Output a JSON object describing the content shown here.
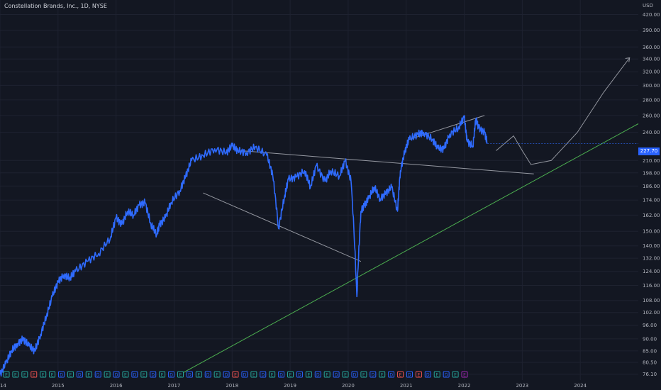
{
  "header": {
    "title": "Constellation Brands, Inc., 1D, NYSE"
  },
  "colors": {
    "background": "#131722",
    "grid": "#1e2230",
    "price_line": "#2f6bff",
    "axis_text": "#b2b5be",
    "trend_support": "#4caf50",
    "annotation": "#9598a1",
    "badge": "#2962ff"
  },
  "chart_data": {
    "type": "line",
    "title": "Constellation Brands, Inc., 1D, NYSE",
    "xlabel": "",
    "ylabel": "USD",
    "currency_label": "USD",
    "current_price": "227.70",
    "y_scale": "log",
    "ylim": [
      74,
      450
    ],
    "xlim": [
      2014.0,
      2025.0
    ],
    "grid": true,
    "x_tick_labels": [
      "2014",
      "2015",
      "2016",
      "2017",
      "2018",
      "2019",
      "2020",
      "2021",
      "2022",
      "2023",
      "2024"
    ],
    "y_tick_labels": [
      "420.00",
      "390.00",
      "360.00",
      "340.00",
      "320.00",
      "300.00",
      "280.00",
      "260.00",
      "240.00",
      "210.00",
      "198.00",
      "186.00",
      "174.00",
      "162.00",
      "150.00",
      "140.00",
      "132.00",
      "124.00",
      "116.00",
      "108.00",
      "102.00",
      "96.00",
      "90.00",
      "85.00",
      "80.50",
      "76.10"
    ],
    "series": [
      {
        "x": [
          2014.0,
          2014.1,
          2014.2,
          2014.3,
          2014.4,
          2014.5,
          2014.6,
          2014.7,
          2014.8,
          2014.9,
          2015.0,
          2015.1,
          2015.2,
          2015.3,
          2015.5,
          2015.7,
          2015.9,
          2016.0,
          2016.1,
          2016.2,
          2016.3,
          2016.4,
          2016.5,
          2016.6,
          2016.7,
          2016.75,
          2016.85,
          2016.95,
          2017.1,
          2017.2,
          2017.3,
          2017.5,
          2017.7,
          2017.9,
          2018.0,
          2018.1,
          2018.25,
          2018.4,
          2018.6,
          2018.7,
          2018.8,
          2018.9,
          2018.97,
          2019.1,
          2019.25,
          2019.35,
          2019.45,
          2019.6,
          2019.7,
          2019.85,
          2019.95,
          2020.05,
          2020.15,
          2020.22,
          2020.28,
          2020.35,
          2020.45,
          2020.55,
          2020.65,
          2020.75,
          2020.85,
          2020.9,
          2020.98,
          2021.05,
          2021.2,
          2021.3,
          2021.45,
          2021.55,
          2021.65,
          2021.75,
          2021.9,
          2022.0,
          2022.05,
          2022.15,
          2022.2,
          2022.25,
          2022.35,
          2022.4
        ],
        "values": [
          76,
          80,
          85,
          88,
          90,
          87,
          85,
          92,
          100,
          110,
          118,
          122,
          120,
          124,
          130,
          135,
          145,
          160,
          155,
          165,
          162,
          170,
          172,
          155,
          148,
          155,
          160,
          172,
          182,
          195,
          210,
          215,
          222,
          218,
          225,
          220,
          218,
          224,
          215,
          196,
          152,
          176,
          192,
          194,
          200,
          185,
          205,
          190,
          200,
          195,
          210,
          190,
          110,
          165,
          170,
          175,
          185,
          175,
          180,
          185,
          165,
          200,
          220,
          232,
          238,
          240,
          232,
          222,
          222,
          238,
          245,
          258,
          230,
          225,
          256,
          245,
          240,
          227.7
        ]
      }
    ],
    "annotations": [
      {
        "type": "support_trendline",
        "x": [
          2017.1,
          2025.0
        ],
        "y": [
          76,
          250
        ]
      },
      {
        "type": "neckline",
        "x": [
          2018.15,
          2023.2
        ],
        "y": [
          220,
          197
        ]
      },
      {
        "type": "trendline",
        "x": [
          2017.5,
          2020.22
        ],
        "y": [
          180,
          130
        ]
      },
      {
        "type": "trendline",
        "x": [
          2021.05,
          2022.35
        ],
        "y": [
          232,
          260
        ]
      },
      {
        "type": "projection_arrow",
        "x": [
          2022.55,
          2022.85,
          2023.0,
          2023.15,
          2023.5,
          2023.95,
          2024.4,
          2024.85
        ],
        "y": [
          220,
          236,
          220,
          206,
          210,
          240,
          290,
          342
        ]
      }
    ],
    "earnings_markers": [
      {
        "t": "E",
        "c": "g"
      },
      {
        "t": "E",
        "c": "g"
      },
      {
        "t": "E",
        "c": "g"
      },
      {
        "t": "E",
        "c": "r"
      },
      {
        "t": "E",
        "c": "g"
      },
      {
        "t": "E",
        "c": "g"
      },
      {
        "t": "D",
        "c": "b"
      },
      {
        "t": "E",
        "c": "g"
      },
      {
        "t": "D",
        "c": "b"
      },
      {
        "t": "E",
        "c": "g"
      },
      {
        "t": "D",
        "c": "b"
      },
      {
        "t": "E",
        "c": "g"
      },
      {
        "t": "D",
        "c": "b"
      },
      {
        "t": "E",
        "c": "g"
      },
      {
        "t": "D",
        "c": "b"
      },
      {
        "t": "E",
        "c": "g"
      },
      {
        "t": "D",
        "c": "b"
      },
      {
        "t": "E",
        "c": "g"
      },
      {
        "t": "D",
        "c": "b"
      },
      {
        "t": "E",
        "c": "g"
      },
      {
        "t": "D",
        "c": "b"
      },
      {
        "t": "E",
        "c": "g"
      },
      {
        "t": "D",
        "c": "b"
      },
      {
        "t": "E",
        "c": "g"
      },
      {
        "t": "D",
        "c": "b"
      },
      {
        "t": "E",
        "c": "r"
      },
      {
        "t": "D",
        "c": "b"
      },
      {
        "t": "E",
        "c": "g"
      },
      {
        "t": "D",
        "c": "b"
      },
      {
        "t": "E",
        "c": "g"
      },
      {
        "t": "D",
        "c": "b"
      },
      {
        "t": "E",
        "c": "g"
      },
      {
        "t": "D",
        "c": "b"
      },
      {
        "t": "E",
        "c": "g"
      },
      {
        "t": "D",
        "c": "b"
      },
      {
        "t": "E",
        "c": "g"
      },
      {
        "t": "D",
        "c": "b"
      },
      {
        "t": "E",
        "c": "g"
      },
      {
        "t": "D",
        "c": "b"
      },
      {
        "t": "E",
        "c": "g"
      },
      {
        "t": "D",
        "c": "b"
      },
      {
        "t": "E",
        "c": "g"
      },
      {
        "t": "D",
        "c": "b"
      },
      {
        "t": "E",
        "c": "r"
      },
      {
        "t": "D",
        "c": "b"
      },
      {
        "t": "E",
        "c": "r"
      },
      {
        "t": "D",
        "c": "b"
      },
      {
        "t": "E",
        "c": "g"
      },
      {
        "t": "D",
        "c": "b"
      },
      {
        "t": "E",
        "c": "g"
      },
      {
        "t": "E",
        "c": "p"
      }
    ]
  }
}
